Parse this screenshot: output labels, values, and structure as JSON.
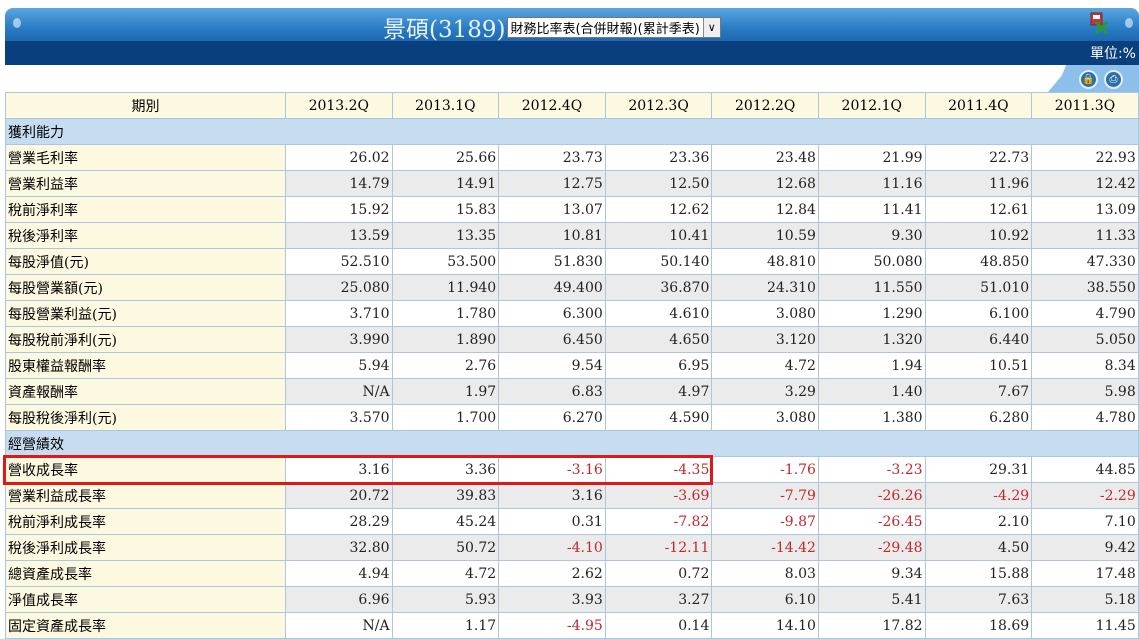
{
  "header": {
    "title": "景碩(3189)",
    "report_select": "財務比率表(合併財報)(累計季表)",
    "unit": "單位:%"
  },
  "icons": {
    "export": "excel-export-icon",
    "lock": "lock-icon",
    "print": "print-icon"
  },
  "colors": {
    "negative": "#c0282c",
    "section": "#c6dcf0",
    "label_bg": "#fdf9e1",
    "highlight": "#e01818"
  },
  "table": {
    "corner": "期別",
    "columns": [
      "2013.2Q",
      "2013.1Q",
      "2012.4Q",
      "2012.3Q",
      "2012.2Q",
      "2012.1Q",
      "2011.4Q",
      "2011.3Q"
    ],
    "sections": [
      {
        "title": "獲利能力",
        "rows": [
          {
            "label": "營業毛利率",
            "values": [
              "26.02",
              "25.66",
              "23.73",
              "23.36",
              "23.48",
              "21.99",
              "22.73",
              "22.93"
            ]
          },
          {
            "label": "營業利益率",
            "values": [
              "14.79",
              "14.91",
              "12.75",
              "12.50",
              "12.68",
              "11.16",
              "11.96",
              "12.42"
            ]
          },
          {
            "label": "稅前淨利率",
            "values": [
              "15.92",
              "15.83",
              "13.07",
              "12.62",
              "12.84",
              "11.41",
              "12.61",
              "13.09"
            ]
          },
          {
            "label": "稅後淨利率",
            "values": [
              "13.59",
              "13.35",
              "10.81",
              "10.41",
              "10.59",
              "9.30",
              "10.92",
              "11.33"
            ]
          },
          {
            "label": "每股淨值(元)",
            "values": [
              "52.510",
              "53.500",
              "51.830",
              "50.140",
              "48.810",
              "50.080",
              "48.850",
              "47.330"
            ]
          },
          {
            "label": "每股營業額(元)",
            "values": [
              "25.080",
              "11.940",
              "49.400",
              "36.870",
              "24.310",
              "11.550",
              "51.010",
              "38.550"
            ]
          },
          {
            "label": "每股營業利益(元)",
            "values": [
              "3.710",
              "1.780",
              "6.300",
              "4.610",
              "3.080",
              "1.290",
              "6.100",
              "4.790"
            ]
          },
          {
            "label": "每股稅前淨利(元)",
            "values": [
              "3.990",
              "1.890",
              "6.450",
              "4.650",
              "3.120",
              "1.320",
              "6.440",
              "5.050"
            ]
          },
          {
            "label": "股東權益報酬率",
            "values": [
              "5.94",
              "2.76",
              "9.54",
              "6.95",
              "4.72",
              "1.94",
              "10.51",
              "8.34"
            ]
          },
          {
            "label": "資產報酬率",
            "values": [
              "N/A",
              "1.97",
              "6.83",
              "4.97",
              "3.29",
              "1.40",
              "7.67",
              "5.98"
            ]
          },
          {
            "label": "每股稅後淨利(元)",
            "values": [
              "3.570",
              "1.700",
              "6.270",
              "4.590",
              "3.080",
              "1.380",
              "6.280",
              "4.780"
            ]
          }
        ]
      },
      {
        "title": "經營績效",
        "rows": [
          {
            "label": "營收成長率",
            "highlighted": true,
            "values": [
              "3.16",
              "3.36",
              "-3.16",
              "-4.35",
              "-1.76",
              "-3.23",
              "29.31",
              "44.85"
            ]
          },
          {
            "label": "營業利益成長率",
            "values": [
              "20.72",
              "39.83",
              "3.16",
              "-3.69",
              "-7.79",
              "-26.26",
              "-4.29",
              "-2.29"
            ]
          },
          {
            "label": "稅前淨利成長率",
            "values": [
              "28.29",
              "45.24",
              "0.31",
              "-7.82",
              "-9.87",
              "-26.45",
              "2.10",
              "7.10"
            ]
          },
          {
            "label": "稅後淨利成長率",
            "values": [
              "32.80",
              "50.72",
              "-4.10",
              "-12.11",
              "-14.42",
              "-29.48",
              "4.50",
              "9.42"
            ]
          },
          {
            "label": "總資產成長率",
            "values": [
              "4.94",
              "4.72",
              "2.62",
              "0.72",
              "8.03",
              "9.34",
              "15.88",
              "17.48"
            ]
          },
          {
            "label": "淨值成長率",
            "values": [
              "6.96",
              "5.93",
              "3.93",
              "3.27",
              "6.10",
              "5.41",
              "7.63",
              "5.18"
            ]
          },
          {
            "label": "固定資產成長率",
            "values": [
              "N/A",
              "1.17",
              "-4.95",
              "0.14",
              "14.10",
              "17.82",
              "18.69",
              "11.45"
            ]
          }
        ]
      }
    ]
  }
}
